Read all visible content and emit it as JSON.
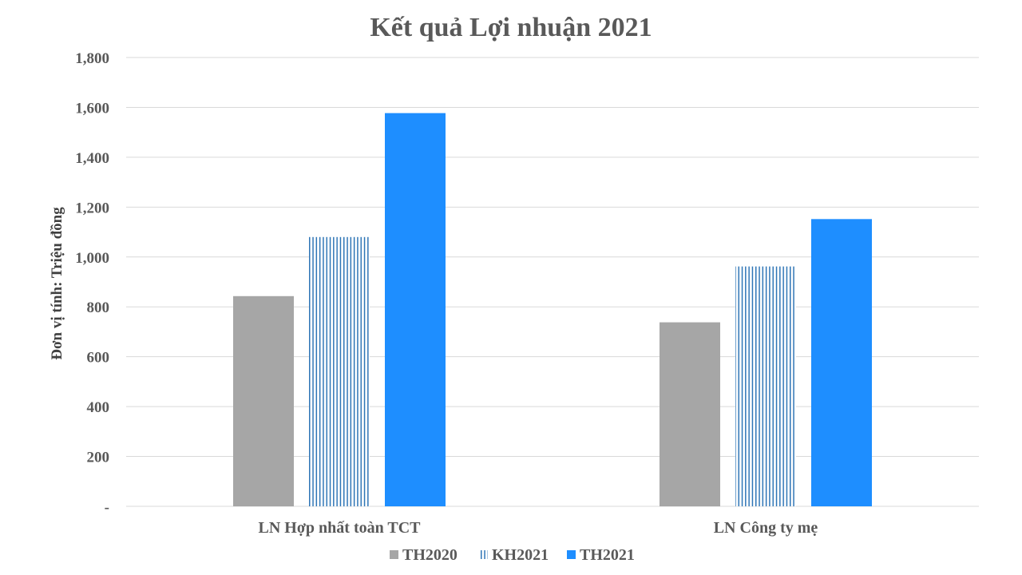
{
  "chart_data": {
    "type": "bar",
    "title": "Kết quả Lợi nhuận 2021",
    "ylabel": "Đơn vị tính: Triệu đồng",
    "xlabel": "",
    "categories": [
      "LN Hợp nhất toàn TCT",
      "LN Công ty mẹ"
    ],
    "series": [
      {
        "name": "TH2020",
        "values": [
          843,
          738
        ],
        "color": "#a6a6a6",
        "pattern": "solid"
      },
      {
        "name": "KH2021",
        "values": [
          1080,
          962
        ],
        "color": "#2e75b6",
        "pattern": "vertical-stripes"
      },
      {
        "name": "TH2021",
        "values": [
          1577,
          1152
        ],
        "color": "#1e8eff",
        "pattern": "solid"
      }
    ],
    "ylim": [
      0,
      1800
    ],
    "yticks": [
      0,
      200,
      400,
      600,
      800,
      1000,
      1200,
      1400,
      1600,
      1800
    ],
    "ytick_labels": [
      "-",
      "200",
      "400",
      "600",
      "800",
      "1,000",
      "1,200",
      "1,400",
      "1,600",
      "1,800"
    ],
    "grid": true,
    "legend_position": "bottom-center"
  }
}
